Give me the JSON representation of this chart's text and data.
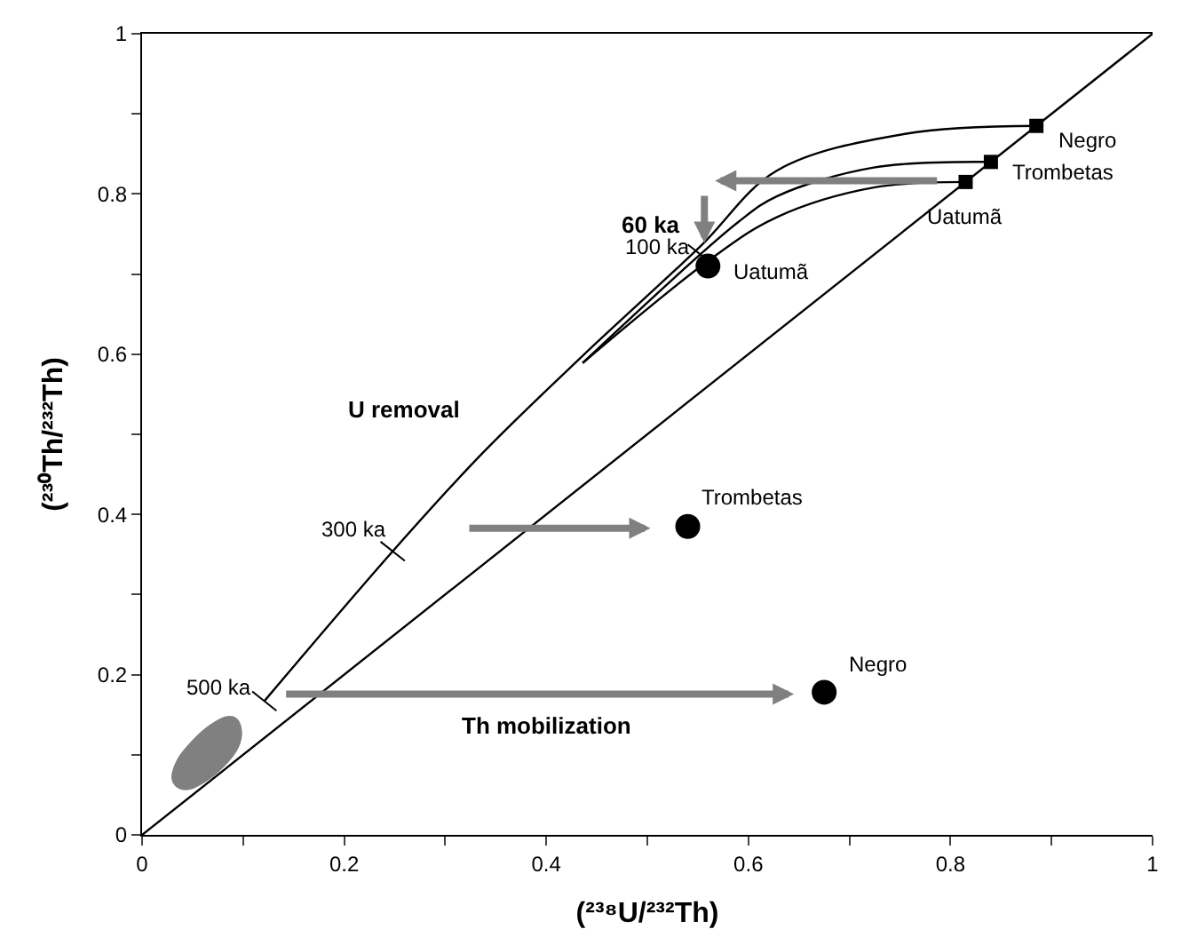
{
  "chart_data": {
    "type": "scatter",
    "xlabel": "(²³⁸U/²³²Th)",
    "ylabel": "(²³⁰Th/²³²Th)",
    "xlim": [
      0,
      1
    ],
    "ylim": [
      0,
      1
    ],
    "xticks": [
      0,
      {
        "value": 0.1,
        "label": null
      },
      0.2,
      {
        "value": 0.3,
        "label": null
      },
      0.4,
      {
        "value": 0.5,
        "label": null
      },
      0.6,
      {
        "value": 0.7,
        "label": null
      },
      0.8,
      {
        "value": 0.9,
        "label": null
      },
      1
    ],
    "yticks": [
      0,
      {
        "value": 0.1,
        "label": null
      },
      0.2,
      {
        "value": 0.3,
        "label": null
      },
      0.4,
      {
        "value": 0.5,
        "label": null
      },
      0.6,
      {
        "value": 0.7,
        "label": null
      },
      0.8,
      {
        "value": 0.9,
        "label": null
      },
      1
    ],
    "series": [
      {
        "type": "line",
        "color": "#000000",
        "marker": "none",
        "x": [
          0,
          1
        ],
        "values": [
          0,
          1
        ]
      },
      {
        "type": "line",
        "color": "#000000",
        "marker": "none",
        "x": [
          0.885,
          0.755,
          0.628,
          0.552,
          0.436,
          0.338,
          0.248,
          0.121
        ],
        "values": [
          0.885,
          0.875,
          0.829,
          0.734,
          0.598,
          0.478,
          0.354,
          0.167
        ]
      },
      {
        "type": "line",
        "color": "#000000",
        "marker": "none",
        "x": [
          0.84,
          0.724,
          0.628,
          0.59,
          0.436
        ],
        "values": [
          0.84,
          0.833,
          0.797,
          0.765,
          0.589
        ]
      },
      {
        "type": "line",
        "color": "#000000",
        "marker": "none",
        "x": [
          0.815,
          0.724,
          0.628,
          0.564,
          0.436
        ],
        "values": [
          0.815,
          0.808,
          0.771,
          0.72,
          0.589
        ]
      },
      {
        "type": "area",
        "color": "#808080",
        "x": [
          0.03,
          0.035,
          0.045,
          0.06,
          0.08,
          0.095,
          0.098,
          0.093,
          0.083,
          0.068,
          0.05,
          0.035,
          0.03
        ],
        "values": [
          0.07,
          0.06,
          0.057,
          0.065,
          0.085,
          0.11,
          0.13,
          0.145,
          0.147,
          0.137,
          0.117,
          0.093,
          0.07
        ]
      },
      {
        "color": "#000000",
        "marker": "square",
        "x": [
          0.885,
          0.84,
          0.815
        ],
        "values": [
          0.885,
          0.84,
          0.815
        ]
      },
      {
        "color": "#000000",
        "marker": "circle",
        "x": [
          0.56,
          0.54,
          0.675
        ],
        "values": [
          0.71,
          0.385,
          0.178
        ]
      }
    ],
    "annotations": [
      {
        "text": "Negro",
        "x": 0.885,
        "y": 0.885
      },
      {
        "text": "Trombetas",
        "x": 0.84,
        "y": 0.84
      },
      {
        "text": "Uatumã",
        "x": 0.815,
        "y": 0.815
      },
      {
        "text": "Uatumã",
        "x": 0.56,
        "y": 0.71
      },
      {
        "text": "Trombetas",
        "x": 0.54,
        "y": 0.385
      },
      {
        "text": "Negro",
        "x": 0.675,
        "y": 0.178
      },
      {
        "text": "100 ka",
        "x": 0.552,
        "y": 0.725
      },
      {
        "text": "300 ka",
        "x": 0.248,
        "y": 0.354
      },
      {
        "text": "500 ka",
        "x": 0.121,
        "y": 0.167
      },
      "60 ka",
      "U removal",
      "Th mobilization"
    ]
  }
}
